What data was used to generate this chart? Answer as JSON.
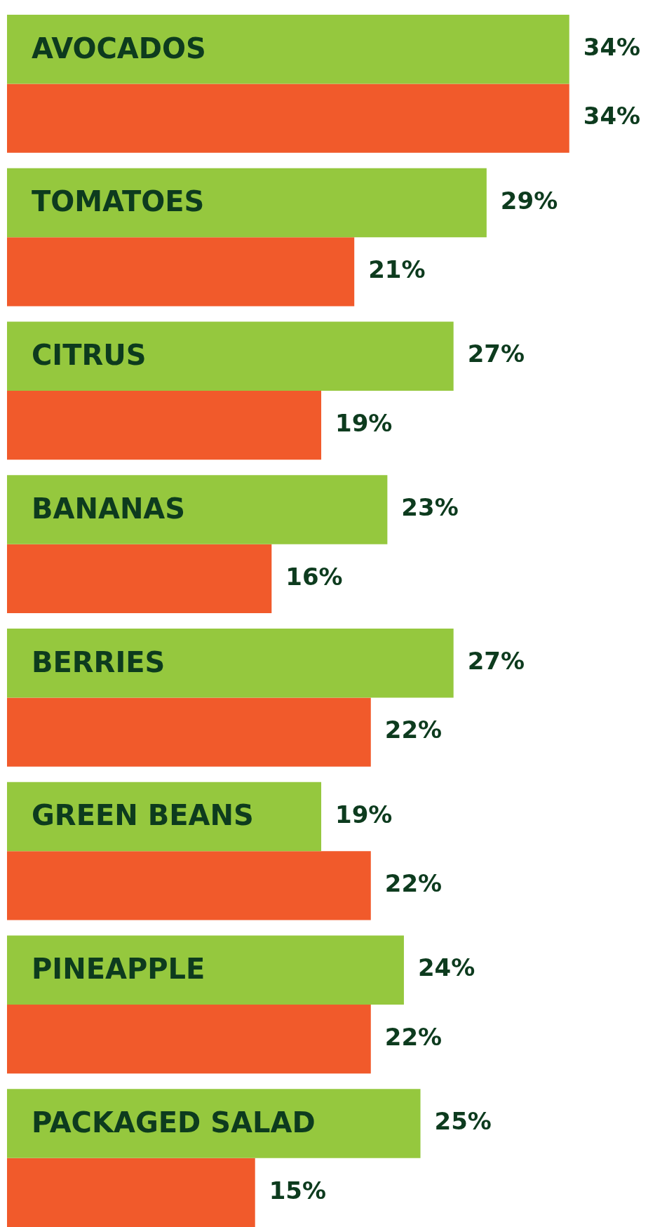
{
  "chart_data": {
    "type": "bar",
    "orientation": "horizontal",
    "categories": [
      "AVOCADOS",
      "TOMATOES",
      "CITRUS",
      "BANANAS",
      "BERRIES",
      "GREEN BEANS",
      "PINEAPPLE",
      "PACKAGED SALAD"
    ],
    "series": [
      {
        "color": "#95c83e",
        "values": [
          34,
          29,
          27,
          23,
          27,
          19,
          24,
          25
        ],
        "value_labels": [
          "34%",
          "29%",
          "27%",
          "23%",
          "27%",
          "19%",
          "24%",
          "25%"
        ]
      },
      {
        "color": "#f15a2b",
        "values": [
          34,
          21,
          19,
          16,
          22,
          22,
          22,
          15
        ],
        "value_labels": [
          "34%",
          "21%",
          "19%",
          "16%",
          "22%",
          "22%",
          "22%",
          "15%"
        ]
      }
    ]
  }
}
